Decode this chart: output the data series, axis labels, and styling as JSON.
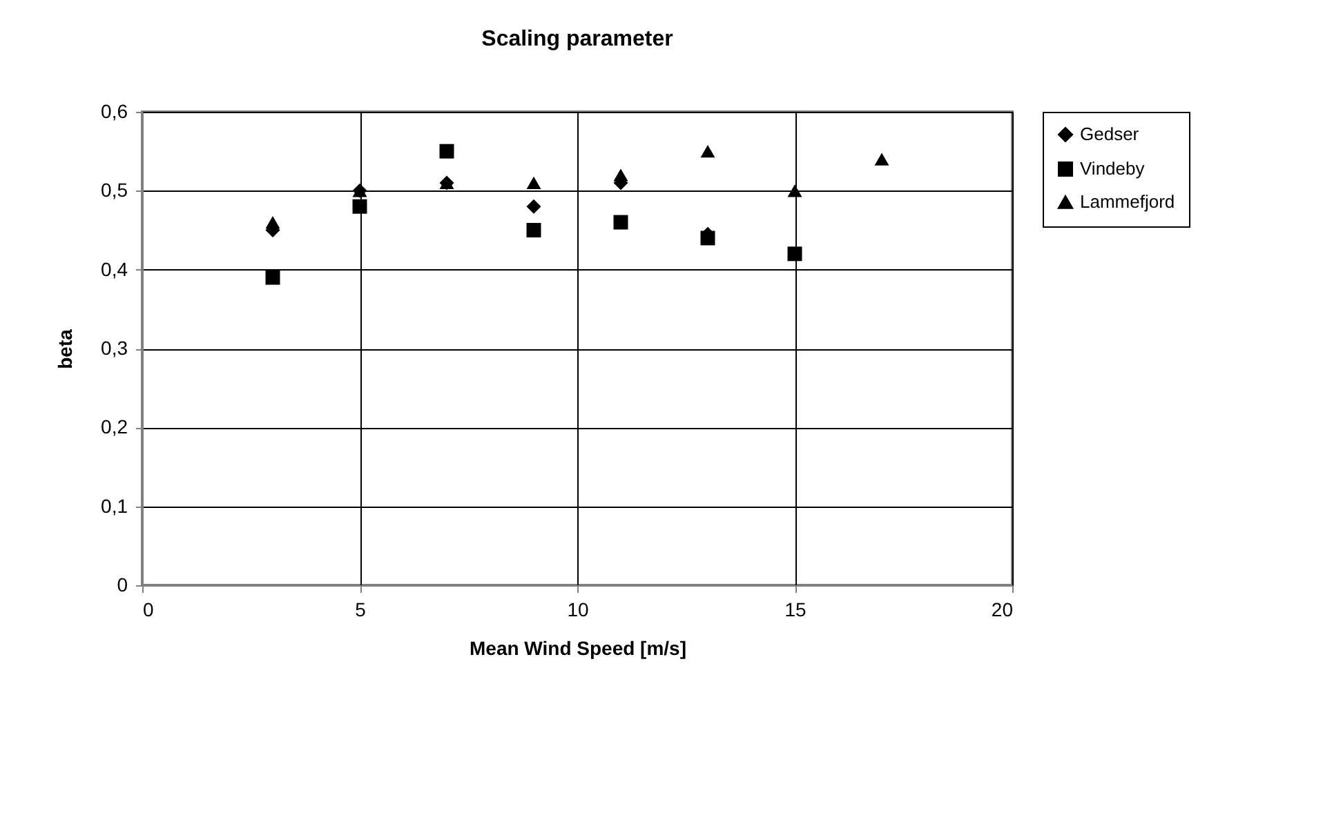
{
  "chart_data": {
    "type": "scatter",
    "title": "Scaling parameter",
    "xlabel": "Mean Wind Speed [m/s]",
    "ylabel": "beta",
    "xlim": [
      0,
      20
    ],
    "xticks": [
      0,
      5,
      10,
      15,
      20
    ],
    "ylim": [
      0,
      0.6
    ],
    "yticks": [
      0,
      {
        "value": 0.1,
        "label": "0,1"
      },
      {
        "value": 0.2,
        "label": "0,2"
      },
      {
        "value": 0.3,
        "label": "0,3"
      },
      {
        "value": 0.4,
        "label": "0,4"
      },
      {
        "value": 0.5,
        "label": "0,5"
      },
      {
        "value": 0.6,
        "label": "0,6"
      }
    ],
    "grid": true,
    "legend": "right",
    "series": [
      {
        "name": "Gedser",
        "color": "#000000",
        "marker": "diamond",
        "x": [
          3,
          5,
          7,
          9,
          11,
          13
        ],
        "values": [
          0.45,
          0.5,
          0.51,
          0.48,
          0.51,
          0.445
        ]
      },
      {
        "name": "Vindeby",
        "color": "#000000",
        "marker": "square",
        "x": [
          3,
          5,
          7,
          9,
          11,
          13,
          15
        ],
        "values": [
          0.39,
          0.48,
          0.55,
          0.45,
          0.46,
          0.44,
          0.42
        ]
      },
      {
        "name": "Lammefjord",
        "color": "#000000",
        "marker": "triangle",
        "x": [
          3,
          5,
          7,
          9,
          11,
          13,
          15,
          17
        ],
        "values": [
          0.46,
          0.5,
          0.51,
          0.51,
          0.52,
          0.55,
          0.5,
          0.54
        ]
      }
    ]
  }
}
